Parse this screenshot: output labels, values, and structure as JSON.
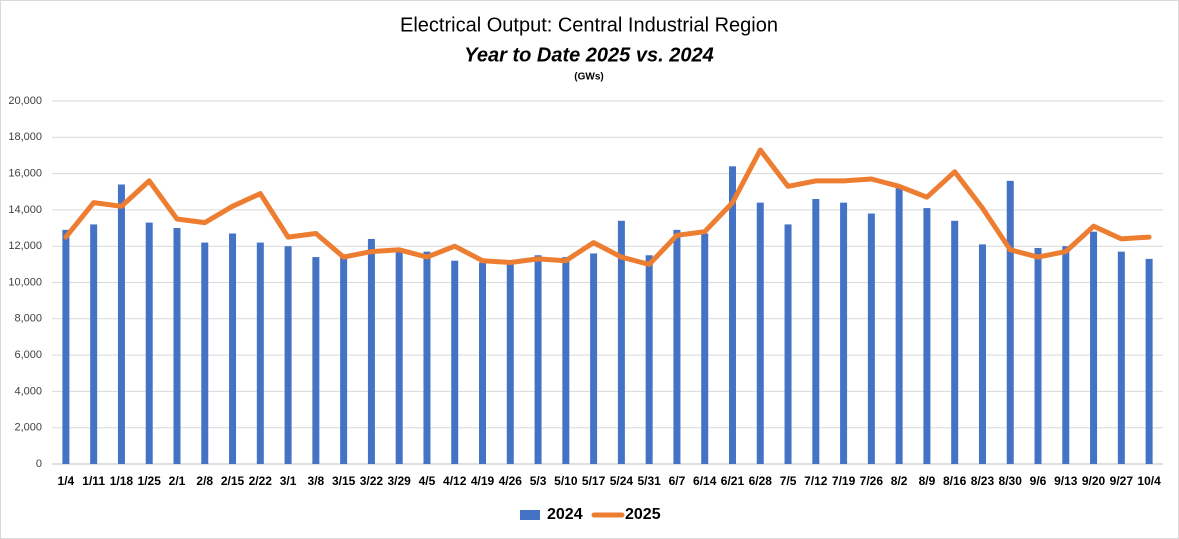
{
  "chart_data": {
    "type": "bar-line",
    "title": "Electrical Output:  Central Industrial Region",
    "subtitle": "Year to Date 2025 vs. 2024",
    "units": "(GWs)",
    "categories": [
      "1/4",
      "1/11",
      "1/18",
      "1/25",
      "2/1",
      "2/8",
      "2/15",
      "2/22",
      "3/1",
      "3/8",
      "3/15",
      "3/22",
      "3/29",
      "4/5",
      "4/12",
      "4/19",
      "4/26",
      "5/3",
      "5/10",
      "5/17",
      "5/24",
      "5/31",
      "6/7",
      "6/14",
      "6/21",
      "6/28",
      "7/5",
      "7/12",
      "7/19",
      "7/26",
      "8/2",
      "8/9",
      "8/16",
      "8/23",
      "8/30",
      "9/6",
      "9/13",
      "9/20",
      "9/27",
      "10/4"
    ],
    "series": [
      {
        "name": "2024",
        "type": "bar",
        "color": "#4472c4",
        "values": [
          12900,
          13200,
          15400,
          13300,
          13000,
          12200,
          12700,
          12200,
          12000,
          11400,
          11400,
          12400,
          11700,
          11700,
          11200,
          11100,
          11100,
          11500,
          11400,
          11600,
          13400,
          11500,
          12900,
          12700,
          16400,
          14400,
          13200,
          14600,
          14400,
          13800,
          15200,
          14100,
          13400,
          12100,
          15600,
          11900,
          12000,
          12800,
          11700,
          11300
        ]
      },
      {
        "name": "2025",
        "type": "line",
        "color": "#ed7d31",
        "values": [
          12500,
          14400,
          14200,
          15600,
          13500,
          13300,
          14200,
          14900,
          12500,
          12700,
          11400,
          11700,
          11800,
          11400,
          12000,
          11200,
          11100,
          11300,
          11200,
          12200,
          11400,
          11000,
          12600,
          12800,
          14400,
          17300,
          15300,
          15600,
          15600,
          15700,
          15300,
          14700,
          16100,
          14100,
          11800,
          11400,
          11700,
          13100,
          12400,
          12500
        ]
      }
    ],
    "ylim": [
      0,
      20000
    ],
    "yticks": [
      0,
      {
        "value": 2000,
        "label": "2,000"
      },
      {
        "value": 4000,
        "label": "4,000"
      },
      {
        "value": 6000,
        "label": "6,000"
      },
      {
        "value": 8000,
        "label": "8,000"
      },
      {
        "value": 10000,
        "label": "10,000"
      },
      {
        "value": 12000,
        "label": "12,000"
      },
      {
        "value": 14000,
        "label": "14,000"
      },
      {
        "value": 16000,
        "label": "16,000"
      },
      {
        "value": 18000,
        "label": "18,000"
      },
      {
        "value": 20000,
        "label": "20,000"
      }
    ],
    "grid": true,
    "legend": "bottom"
  }
}
